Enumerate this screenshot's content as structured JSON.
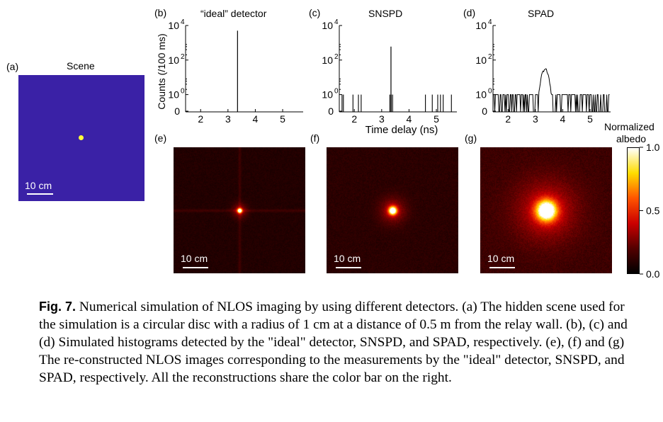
{
  "panels": {
    "a": {
      "label": "(a)",
      "title": "Scene",
      "scale_bar": "10 cm",
      "background_color": "#3a21a6",
      "disc_color": "#ffff3a"
    },
    "b": {
      "label": "(b)",
      "title": "“ideal” detector"
    },
    "c": {
      "label": "(c)",
      "title": "SNSPD"
    },
    "d": {
      "label": "(d)",
      "title": "SPAD"
    },
    "e": {
      "label": "(e)",
      "scale_bar": "10 cm"
    },
    "f": {
      "label": "(f)",
      "scale_bar": "10 cm"
    },
    "g": {
      "label": "(g)",
      "scale_bar": "10 cm"
    }
  },
  "chart_data": [
    {
      "id": "b",
      "type": "line",
      "title": "“ideal” detector",
      "ylabel": "Counts (/100 ms)",
      "xlabel": "",
      "xlim": [
        1.45,
        5.75
      ],
      "ylim_log10": [
        -1,
        4
      ],
      "x_ticks": [
        2,
        3,
        4,
        5
      ],
      "x_tick_labels": [
        "2",
        "3",
        "4",
        "5"
      ],
      "y_tick_labels": [
        "0",
        "10^0",
        "10^2",
        "10^4"
      ],
      "series": [
        {
          "name": "ideal",
          "peaks": [
            {
              "x": 3.35,
              "counts": 5000
            }
          ],
          "noise": []
        }
      ]
    },
    {
      "id": "c",
      "type": "line",
      "title": "SNSPD",
      "ylabel": "",
      "xlabel": "Time delay (ns)",
      "xlim": [
        1.45,
        5.75
      ],
      "ylim_log10": [
        -1,
        4
      ],
      "x_ticks": [
        2,
        3,
        4,
        5
      ],
      "x_tick_labels": [
        "2",
        "3",
        "4",
        "5"
      ],
      "y_tick_labels": [
        "0",
        "10^0",
        "10^2",
        "10^4"
      ],
      "series": [
        {
          "name": "SNSPD",
          "peaks": [
            {
              "x": 3.34,
              "counts": 600
            }
          ],
          "noise": [
            1.55,
            1.6,
            1.95,
            2.15,
            2.25,
            3.3,
            3.35,
            3.4,
            4.6,
            4.85,
            5.05,
            5.15,
            5.25,
            5.55
          ]
        }
      ]
    },
    {
      "id": "d",
      "type": "line",
      "title": "SPAD",
      "ylabel": "",
      "xlabel": "",
      "xlim": [
        1.45,
        5.75
      ],
      "ylim_log10": [
        -1,
        4
      ],
      "x_ticks": [
        2,
        3,
        4,
        5
      ],
      "x_tick_labels": [
        "2",
        "3",
        "4",
        "5"
      ],
      "y_tick_labels": [
        "0",
        "10^0",
        "10^2",
        "10^4"
      ],
      "series": [
        {
          "name": "SPAD",
          "gaussian": {
            "center": 3.35,
            "sigma": 0.09,
            "peak_counts": 30,
            "background_counts": 1
          },
          "noise_density": "dense"
        }
      ]
    },
    {
      "id": "colorbar",
      "type": "heatmap",
      "title": "Normalized albedo",
      "ylim": [
        0.0,
        1.0
      ],
      "y_ticks": [
        0.0,
        0.5,
        1.0
      ],
      "y_tick_labels": [
        "0.0",
        "0.5",
        "1.0"
      ],
      "colormap": [
        "#000000",
        "#550000",
        "#cc0000",
        "#ff5500",
        "#ffdd00",
        "#ffffff"
      ]
    },
    {
      "id": "e",
      "type": "heatmap",
      "center": [
        0.5,
        0.5
      ],
      "spot_width": 0.012,
      "background": 0.08
    },
    {
      "id": "f",
      "type": "heatmap",
      "center": [
        0.5,
        0.5
      ],
      "spot_width": 0.022,
      "background": 0.1
    },
    {
      "id": "g",
      "type": "heatmap",
      "center": [
        0.5,
        0.5
      ],
      "spot_width": 0.055,
      "background": 0.14
    }
  ],
  "caption": {
    "fig_label": "Fig. 7.",
    "text": "Numerical simulation of NLOS imaging by using different detectors. (a) The hidden scene used for the simulation is a circular disc with a radius of 1 cm at a distance of 0.5 m from the relay wall. (b), (c) and (d) Simulated histograms detected by the \"ideal\" detector, SNSPD, and SPAD, respectively. (e), (f) and (g) The re-constructed NLOS images corresponding to the measurements by the \"ideal\" detector, SNSPD, and SPAD, respectively. All the reconstructions share the color bar on the right."
  }
}
